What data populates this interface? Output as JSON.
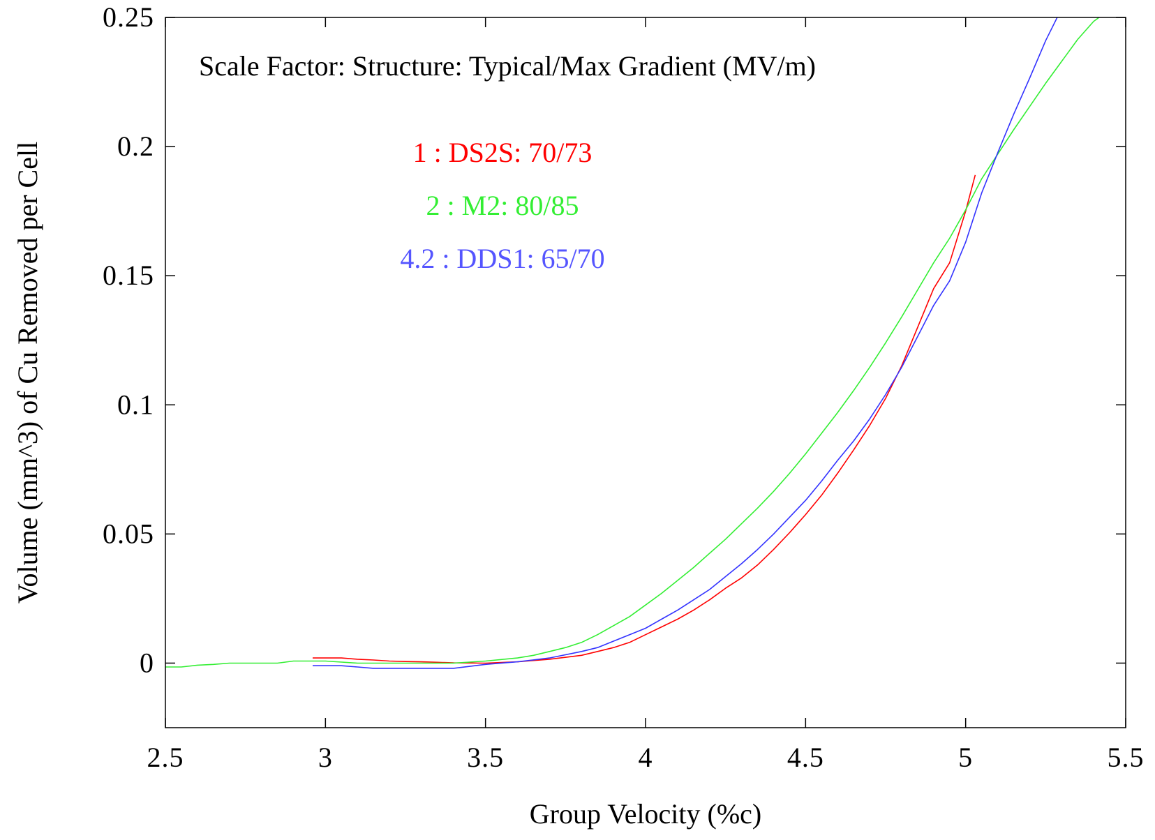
{
  "chart_data": {
    "type": "line",
    "title": "",
    "xlabel": "Group Velocity (%c)",
    "ylabel": "Volume (mm^3) of Cu Removed per Cell",
    "xlim": [
      2.5,
      5.5
    ],
    "ylim": [
      -0.025,
      0.25
    ],
    "x_ticks": [
      2.5,
      3,
      3.5,
      4,
      4.5,
      5,
      5.5
    ],
    "x_tick_labels": [
      "2.5",
      "3",
      "3.5",
      "4",
      "4.5",
      "5",
      "5.5"
    ],
    "y_ticks": [
      0,
      0.05,
      0.1,
      0.15,
      0.2,
      0.25
    ],
    "y_tick_labels": [
      "0",
      "0.05",
      "0.1",
      "0.15",
      "0.2",
      "0.25"
    ],
    "grid": false,
    "annotations": [
      {
        "text": "Scale Factor: Structure: Typical/Max Gradient (MV/m)",
        "color": "#000000"
      },
      {
        "text": "1 : DS2S: 70/73",
        "color": "#ff0000"
      },
      {
        "text": "2 : M2: 80/85",
        "color": "#33ee33"
      },
      {
        "text": "4.2 : DDS1: 65/70",
        "color": "#5555ff"
      }
    ],
    "series": [
      {
        "color": "#ff0000",
        "x": [
          2.96,
          3.0,
          3.05,
          3.1,
          3.15,
          3.2,
          3.25,
          3.3,
          3.35,
          3.4,
          3.5,
          3.6,
          3.7,
          3.8,
          3.85,
          3.9,
          3.95,
          4.0,
          4.05,
          4.1,
          4.15,
          4.2,
          4.25,
          4.3,
          4.35,
          4.4,
          4.45,
          4.5,
          4.55,
          4.6,
          4.65,
          4.7,
          4.75,
          4.8,
          4.85,
          4.9,
          4.95,
          5.0,
          5.03
        ],
        "y": [
          0.002,
          0.002,
          0.002,
          0.0015,
          0.0012,
          0.0008,
          0.0006,
          0.0005,
          0.0003,
          0.0001,
          0.0,
          0.0005,
          0.0015,
          0.003,
          0.0045,
          0.006,
          0.008,
          0.011,
          0.014,
          0.017,
          0.0205,
          0.0245,
          0.029,
          0.033,
          0.038,
          0.044,
          0.0505,
          0.0575,
          0.065,
          0.0735,
          0.0825,
          0.092,
          0.1025,
          0.115,
          0.13,
          0.145,
          0.155,
          0.175,
          0.189
        ]
      },
      {
        "color": "#33ee33",
        "x": [
          2.5,
          2.55,
          2.6,
          2.65,
          2.7,
          2.75,
          2.8,
          2.85,
          2.9,
          2.95,
          3.0,
          3.05,
          3.1,
          3.2,
          3.3,
          3.4,
          3.5,
          3.6,
          3.65,
          3.7,
          3.75,
          3.8,
          3.85,
          3.9,
          3.95,
          4.0,
          4.05,
          4.1,
          4.15,
          4.2,
          4.25,
          4.3,
          4.35,
          4.4,
          4.45,
          4.5,
          4.55,
          4.6,
          4.65,
          4.7,
          4.75,
          4.8,
          4.85,
          4.9,
          4.95,
          5.0,
          5.05,
          5.1,
          5.15,
          5.2,
          5.25,
          5.3,
          5.35,
          5.4,
          5.45
        ],
        "y": [
          -0.0015,
          -0.0015,
          -0.0008,
          -0.0005,
          0.0,
          0.0,
          0.0,
          0.0,
          0.0008,
          0.0008,
          0.0008,
          0.0004,
          0.0,
          0.0,
          0.0,
          0.0,
          0.0008,
          0.002,
          0.003,
          0.0045,
          0.006,
          0.008,
          0.011,
          0.0145,
          0.018,
          0.0225,
          0.027,
          0.032,
          0.037,
          0.0425,
          0.048,
          0.054,
          0.06,
          0.0665,
          0.0735,
          0.081,
          0.089,
          0.097,
          0.1055,
          0.1145,
          0.124,
          0.134,
          0.1445,
          0.155,
          0.1645,
          0.1755,
          0.1875,
          0.197,
          0.2065,
          0.2155,
          0.2245,
          0.233,
          0.2415,
          0.2485,
          0.253
        ]
      },
      {
        "color": "#3333ff",
        "x": [
          2.96,
          3.0,
          3.05,
          3.1,
          3.15,
          3.2,
          3.25,
          3.3,
          3.35,
          3.4,
          3.5,
          3.6,
          3.7,
          3.8,
          3.85,
          3.9,
          3.95,
          4.0,
          4.05,
          4.1,
          4.15,
          4.2,
          4.25,
          4.3,
          4.35,
          4.4,
          4.45,
          4.5,
          4.55,
          4.6,
          4.65,
          4.7,
          4.75,
          4.8,
          4.85,
          4.9,
          4.95,
          5.0,
          5.05,
          5.1,
          5.15,
          5.2,
          5.25,
          5.29
        ],
        "y": [
          -0.001,
          -0.001,
          -0.001,
          -0.0015,
          -0.002,
          -0.002,
          -0.002,
          -0.002,
          -0.002,
          -0.002,
          -0.0005,
          0.0005,
          0.002,
          0.0045,
          0.006,
          0.0085,
          0.011,
          0.0135,
          0.017,
          0.0205,
          0.0245,
          0.0285,
          0.0335,
          0.0385,
          0.044,
          0.05,
          0.0565,
          0.063,
          0.0705,
          0.0785,
          0.086,
          0.0945,
          0.104,
          0.1145,
          0.1265,
          0.1385,
          0.148,
          0.163,
          0.182,
          0.1975,
          0.2125,
          0.2265,
          0.241,
          0.251
        ]
      }
    ]
  }
}
